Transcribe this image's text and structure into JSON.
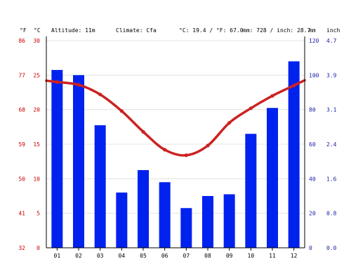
{
  "header": {
    "unit_f": "°F",
    "unit_c": "°C",
    "altitude": "Altitude: 11m",
    "climate": "Climate: Cfa",
    "temp_summary": "°C: 19.4 / °F: 67.0",
    "precip_summary": "mm: 728 / inch: 28.7",
    "unit_mm": "mm",
    "unit_inch": "inch"
  },
  "colors": {
    "temperature": "#cc2222",
    "precipitation": "#0022ee",
    "temp_axis_text": "#cc0000",
    "precip_axis_text": "#1a1aaa",
    "grid": "#dddddd"
  },
  "chart_data": {
    "type": "bar",
    "categories": [
      "01",
      "02",
      "03",
      "04",
      "05",
      "06",
      "07",
      "08",
      "09",
      "10",
      "11",
      "12"
    ],
    "series": [
      {
        "kind": "bar",
        "axis": "right",
        "unit": "mm",
        "values": [
          103,
          100,
          71,
          32,
          45,
          38,
          23,
          30,
          31,
          66,
          81,
          108
        ]
      },
      {
        "kind": "line",
        "axis": "left",
        "unit": "°C",
        "values": [
          24.0,
          23.6,
          22.2,
          19.8,
          16.8,
          14.2,
          13.4,
          14.8,
          18.1,
          20.2,
          22.0,
          23.5
        ]
      }
    ],
    "y_left_c": {
      "ticks": [
        "0",
        "5",
        "10",
        "15",
        "20",
        "25",
        "30"
      ],
      "range": [
        0,
        30
      ]
    },
    "y_left_f": {
      "ticks": [
        "32",
        "41",
        "50",
        "59",
        "68",
        "77",
        "86"
      ]
    },
    "y_right_mm": {
      "ticks": [
        "0",
        "20",
        "40",
        "60",
        "80",
        "100",
        "120"
      ],
      "range": [
        0,
        120
      ]
    },
    "y_right_inch": {
      "ticks": [
        "0.0",
        "0.8",
        "1.6",
        "2.4",
        "3.1",
        "3.9",
        "4.7"
      ]
    },
    "grid": true
  }
}
